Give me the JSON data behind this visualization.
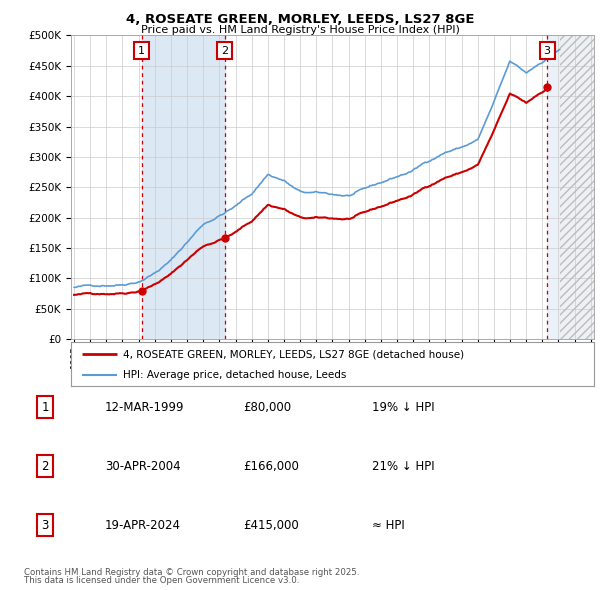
{
  "title": "4, ROSEATE GREEN, MORLEY, LEEDS, LS27 8GE",
  "subtitle": "Price paid vs. HM Land Registry's House Price Index (HPI)",
  "ylim": [
    0,
    500000
  ],
  "ytick_vals": [
    0,
    50000,
    100000,
    150000,
    200000,
    250000,
    300000,
    350000,
    400000,
    450000,
    500000
  ],
  "ytick_labels": [
    "£0",
    "£50K",
    "£100K",
    "£150K",
    "£200K",
    "£250K",
    "£300K",
    "£350K",
    "£400K",
    "£450K",
    "£500K"
  ],
  "xlim": [
    1994.8,
    2027.2
  ],
  "hpi_color": "#5b9bd5",
  "price_color": "#cc0000",
  "shade_color": "#dce9f5",
  "grid_color": "#cccccc",
  "sale_dates_year": [
    1999.19,
    2004.33,
    2024.3
  ],
  "sale_prices": [
    80000,
    166000,
    415000
  ],
  "sale_labels": [
    "1",
    "2",
    "3"
  ],
  "legend_label_price": "4, ROSEATE GREEN, MORLEY, LEEDS, LS27 8GE (detached house)",
  "legend_label_hpi": "HPI: Average price, detached house, Leeds",
  "table_rows": [
    [
      "1",
      "12-MAR-1999",
      "£80,000",
      "19% ↓ HPI"
    ],
    [
      "2",
      "30-APR-2004",
      "£166,000",
      "21% ↓ HPI"
    ],
    [
      "3",
      "19-APR-2024",
      "£415,000",
      "≈ HPI"
    ]
  ],
  "footnote1": "Contains HM Land Registry data © Crown copyright and database right 2025.",
  "footnote2": "This data is licensed under the Open Government Licence v3.0."
}
